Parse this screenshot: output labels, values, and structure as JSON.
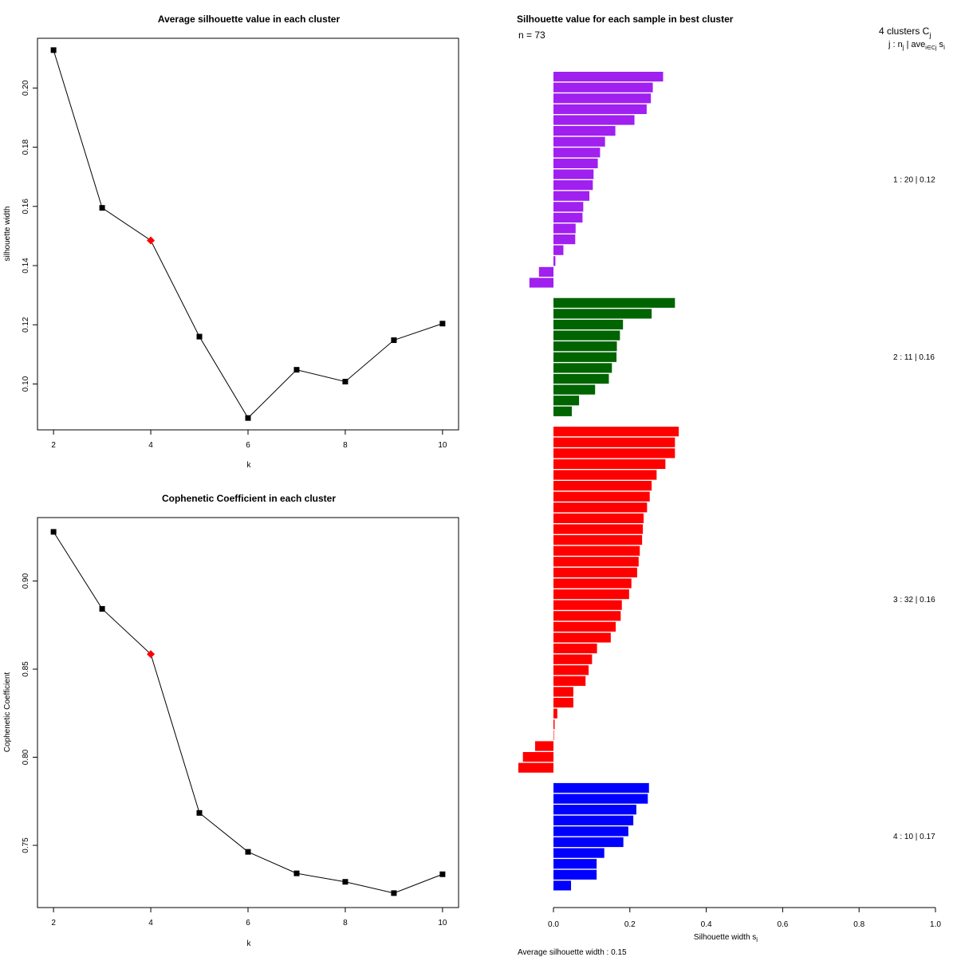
{
  "chart_data": [
    {
      "type": "line",
      "title": "Average silhouette value in each cluster",
      "xlabel": "k",
      "ylabel": "silhouette width",
      "x": [
        2,
        3,
        4,
        5,
        6,
        7,
        8,
        9,
        10
      ],
      "values": [
        0.2128,
        0.1595,
        0.1485,
        0.116,
        0.0885,
        0.1048,
        0.1008,
        0.1148,
        0.1204
      ],
      "highlight_index": 2,
      "highlight_color": "#ff0000",
      "xlim": [
        1.67,
        10.33
      ],
      "ylim": [
        0.0845,
        0.2168
      ],
      "xticks": [
        "2",
        "4",
        "6",
        "8",
        "10"
      ],
      "yticks": [
        "0.10",
        "0.12",
        "0.14",
        "0.16",
        "0.18",
        "0.20"
      ]
    },
    {
      "type": "line",
      "title": "Cophenetic Coefficient in each cluster",
      "xlabel": "k",
      "ylabel": "Cophenetic Coefficient",
      "x": [
        2,
        3,
        4,
        5,
        6,
        7,
        8,
        9,
        10
      ],
      "values": [
        0.9279,
        0.8842,
        0.8585,
        0.7684,
        0.7463,
        0.7341,
        0.7293,
        0.7229,
        0.7336
      ],
      "highlight_index": 2,
      "highlight_color": "#ff0000",
      "xlim": [
        1.67,
        10.33
      ],
      "ylim": [
        0.7147,
        0.936
      ],
      "xticks": [
        "2",
        "4",
        "6",
        "8",
        "10"
      ],
      "yticks": [
        "0.75",
        "0.80",
        "0.85",
        "0.90"
      ]
    },
    {
      "type": "bar",
      "orientation": "horizontal",
      "title": "Silhouette value for each sample in best cluster",
      "n_label": "n = 73",
      "header_line1": "4 clusters  C",
      "header_sub1": "j",
      "header_line2": "j :  n",
      "header_sub2a": "j",
      "header_mid2": " | ave",
      "header_sub2b": "i∈Cj",
      "header_tail2": " s",
      "header_sub2c": "i",
      "xlabel": "Silhouette width s",
      "xlabel_sub": "i",
      "footer": "Average silhouette width :  0.15",
      "xlim": [
        0,
        1
      ],
      "xticks": [
        "0.0",
        "0.2",
        "0.4",
        "0.6",
        "0.8",
        "1.0"
      ],
      "clusters": [
        {
          "label": "1 :  20  |  0.12",
          "color": "#a020f0",
          "values": [
            0.287,
            0.26,
            0.255,
            0.244,
            0.212,
            0.162,
            0.135,
            0.122,
            0.116,
            0.105,
            0.103,
            0.094,
            0.078,
            0.076,
            0.058,
            0.057,
            0.026,
            0.005,
            -0.038,
            -0.063
          ]
        },
        {
          "label": "2 :  11  |  0.16",
          "color": "#006400",
          "values": [
            0.318,
            0.257,
            0.182,
            0.174,
            0.166,
            0.165,
            0.153,
            0.145,
            0.109,
            0.067,
            0.048
          ]
        },
        {
          "label": "3 :  32  |  0.16",
          "color": "#ff0000",
          "values": [
            0.328,
            0.318,
            0.318,
            0.293,
            0.27,
            0.257,
            0.252,
            0.245,
            0.236,
            0.234,
            0.232,
            0.226,
            0.223,
            0.219,
            0.204,
            0.198,
            0.179,
            0.176,
            0.163,
            0.15,
            0.114,
            0.101,
            0.092,
            0.084,
            0.052,
            0.052,
            0.01,
            0.003,
            0.0,
            -0.048,
            -0.08,
            -0.092
          ]
        },
        {
          "label": "4 :  10  |  0.17",
          "color": "#0000ff",
          "values": [
            0.25,
            0.247,
            0.217,
            0.209,
            0.196,
            0.183,
            0.133,
            0.113,
            0.113,
            0.046
          ]
        }
      ]
    }
  ]
}
